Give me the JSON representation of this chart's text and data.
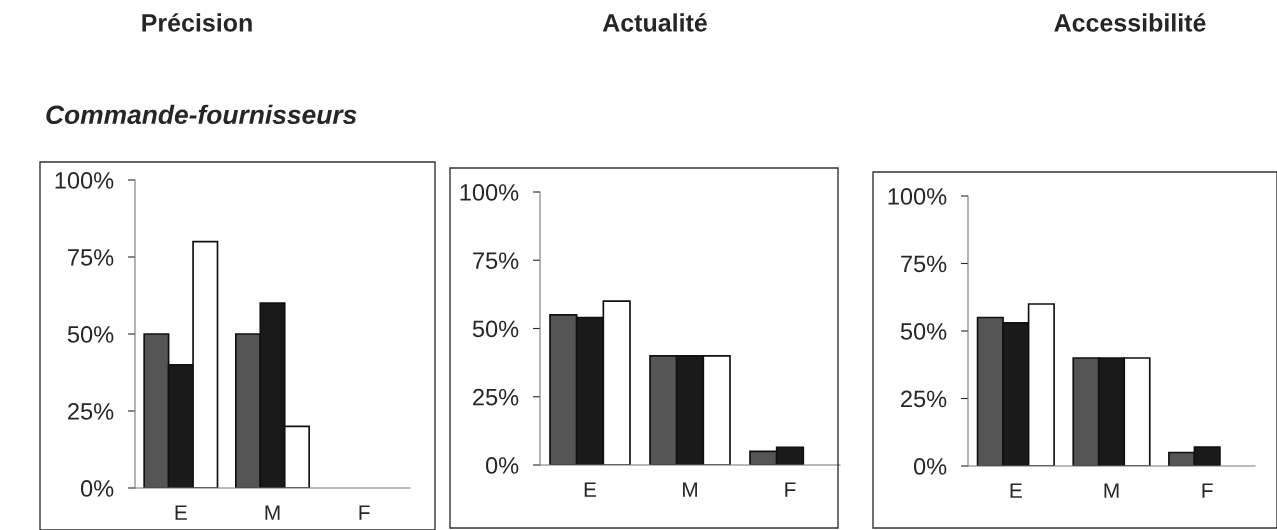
{
  "chart_data": [
    {
      "type": "bar",
      "title": "Précision",
      "subtitle": "Commande-fournisseurs",
      "categories": [
        "E",
        "M",
        "F"
      ],
      "series": [
        {
          "color": "#555555",
          "values": [
            50,
            50,
            0
          ]
        },
        {
          "color": "#1a1a1a",
          "values": [
            40,
            60,
            0
          ]
        },
        {
          "color": "#ffffff",
          "values": [
            80,
            20,
            0
          ]
        }
      ],
      "ylim": [
        0,
        100
      ],
      "yticks": [
        {
          "value": 0,
          "label": "0%"
        },
        {
          "value": 25,
          "label": "25%"
        },
        {
          "value": 50,
          "label": "50%"
        },
        {
          "value": 75,
          "label": "75%"
        },
        {
          "value": 100,
          "label": "100%"
        }
      ],
      "grid": false,
      "legend": false
    },
    {
      "type": "bar",
      "title": "Actualité",
      "categories": [
        "E",
        "M",
        "F"
      ],
      "series": [
        {
          "color": "#555555",
          "values": [
            55,
            40,
            5
          ]
        },
        {
          "color": "#1a1a1a",
          "values": [
            54,
            40,
            6.5
          ]
        },
        {
          "color": "#ffffff",
          "values": [
            60,
            40,
            0
          ]
        }
      ],
      "ylim": [
        0,
        100
      ],
      "yticks": [
        {
          "value": 0,
          "label": "0%"
        },
        {
          "value": 25,
          "label": "25%"
        },
        {
          "value": 50,
          "label": "50%"
        },
        {
          "value": 75,
          "label": "75%"
        },
        {
          "value": 100,
          "label": "100%"
        }
      ],
      "grid": false,
      "legend": false
    },
    {
      "type": "bar",
      "title": "Accessibilité",
      "categories": [
        "E",
        "M",
        "F"
      ],
      "series": [
        {
          "color": "#555555",
          "values": [
            55,
            40,
            5
          ]
        },
        {
          "color": "#1a1a1a",
          "values": [
            53,
            40,
            7
          ]
        },
        {
          "color": "#ffffff",
          "values": [
            60,
            40,
            0
          ]
        }
      ],
      "ylim": [
        0,
        100
      ],
      "yticks": [
        {
          "value": 0,
          "label": "0%"
        },
        {
          "value": 25,
          "label": "25%"
        },
        {
          "value": 50,
          "label": "50%"
        },
        {
          "value": 75,
          "label": "75%"
        },
        {
          "value": 100,
          "label": "100%"
        }
      ],
      "grid": false,
      "legend": false
    }
  ]
}
